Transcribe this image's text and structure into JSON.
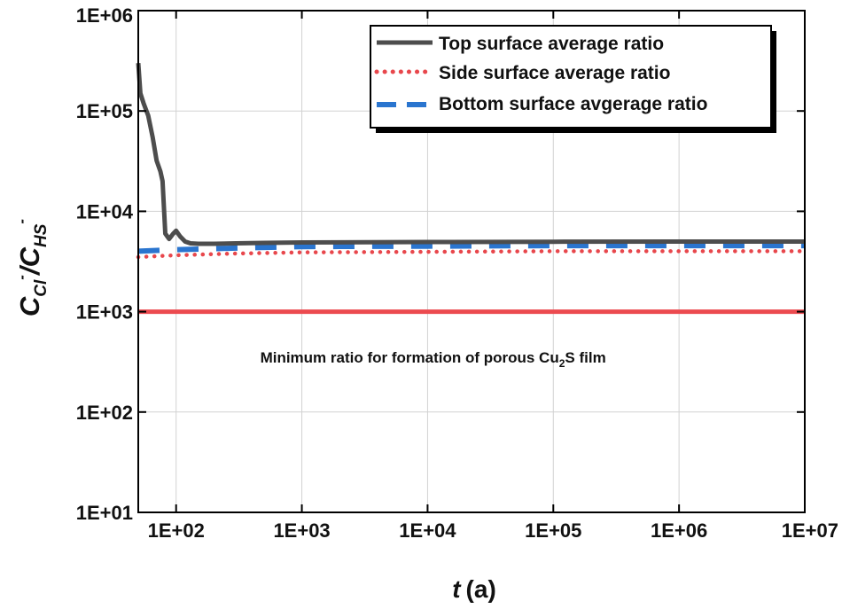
{
  "chart_data": {
    "type": "line",
    "x_scale": "log",
    "y_scale": "log",
    "xlabel": {
      "symbol": "t",
      "unit": "(a)"
    },
    "ylabel": {
      "num_base": "C",
      "num_sub": "Cl",
      "num_sup": "-",
      "den_base": "C",
      "den_sub": "HS",
      "den_sup": "-"
    },
    "xlim": [
      50,
      10000000
    ],
    "ylim": [
      10,
      1000000
    ],
    "x_ticks": [
      {
        "value": 100,
        "label": "1E+02"
      },
      {
        "value": 1000,
        "label": "1E+03"
      },
      {
        "value": 10000,
        "label": "1E+04"
      },
      {
        "value": 100000,
        "label": "1E+05"
      },
      {
        "value": 1000000,
        "label": "1E+06"
      },
      {
        "value": 10000000,
        "label": "1E+07"
      }
    ],
    "y_ticks": [
      {
        "value": 10,
        "label": "1E+01"
      },
      {
        "value": 100,
        "label": "1E+02"
      },
      {
        "value": 1000,
        "label": "1E+03"
      },
      {
        "value": 10000,
        "label": "1E+04"
      },
      {
        "value": 100000,
        "label": "1E+05"
      },
      {
        "value": 1000000,
        "label": "1E+06"
      }
    ],
    "grid": true,
    "legend_position": "top-right",
    "series": [
      {
        "name": "Top surface average ratio",
        "style": "solid",
        "color": "#4d4d4d",
        "x": [
          50,
          52,
          55,
          60,
          65,
          70,
          75,
          78,
          82,
          88,
          95,
          100,
          108,
          118,
          130,
          150,
          200,
          300,
          500,
          1000,
          10000,
          100000,
          1000000,
          10000000
        ],
        "y": [
          300000,
          150000,
          120000,
          90000,
          55000,
          32000,
          25000,
          20000,
          6000,
          5300,
          6000,
          6400,
          5600,
          5000,
          4800,
          4750,
          4750,
          4800,
          4850,
          4900,
          4950,
          4980,
          5000,
          5000
        ]
      },
      {
        "name": "Side surface average ratio",
        "style": "dotted",
        "color": "#e8474c",
        "x": [
          50,
          100,
          300,
          1000,
          10000,
          100000,
          1000000,
          10000000
        ],
        "y": [
          3500,
          3650,
          3800,
          3900,
          3950,
          4000,
          4000,
          4000
        ]
      },
      {
        "name": "Bottom surface avgerage ratio",
        "style": "dashed",
        "color": "#2a75cf",
        "x": [
          50,
          100,
          300,
          1000,
          10000,
          100000,
          1000000,
          10000000
        ],
        "y": [
          4000,
          4150,
          4300,
          4450,
          4500,
          4550,
          4550,
          4550
        ]
      }
    ],
    "reference_line": {
      "y": 1000,
      "color": "#ec4a4f"
    },
    "annotation": {
      "text_pre": "Minimum ratio for formation of porous Cu",
      "sub": "2",
      "text_post": "S film",
      "x": 1000,
      "y": 300
    }
  }
}
